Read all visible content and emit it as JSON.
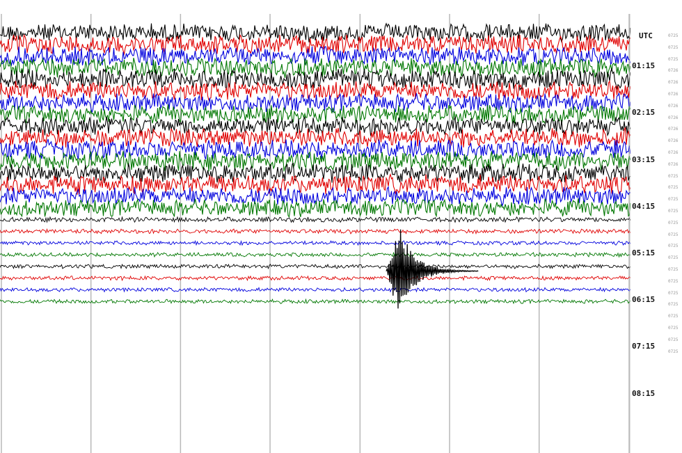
{
  "chart_data": {
    "type": "line",
    "title": "",
    "xlabel": "",
    "ylabel": "",
    "timezone_label": "UTC",
    "y_tick_labels": [
      "01:15",
      "02:15",
      "03:15",
      "04:15",
      "05:15",
      "06:15",
      "07:15",
      "08:15"
    ],
    "hour_tick_positions": [
      1,
      2,
      3,
      4,
      5,
      6,
      7,
      8
    ],
    "rows_per_hour": 4,
    "x_minutes_range": [
      0,
      15
    ],
    "x_gridline_minutes": [
      0,
      2.14,
      4.28,
      6.42,
      8.57,
      10.71,
      12.85,
      15
    ],
    "row_colors": [
      "#000000",
      "#e00000",
      "#0000dd",
      "#007700"
    ],
    "series": [
      {
        "row": 0,
        "hour": 0.25,
        "amplitude": 0.9
      },
      {
        "row": 1,
        "hour": 0.5,
        "amplitude": 0.95
      },
      {
        "row": 2,
        "hour": 0.75,
        "amplitude": 0.95
      },
      {
        "row": 3,
        "hour": 1.0,
        "amplitude": 0.95
      },
      {
        "row": 4,
        "hour": 1.25,
        "amplitude": 1.0
      },
      {
        "row": 5,
        "hour": 1.5,
        "amplitude": 0.95
      },
      {
        "row": 6,
        "hour": 1.75,
        "amplitude": 0.9
      },
      {
        "row": 7,
        "hour": 2.0,
        "amplitude": 0.9
      },
      {
        "row": 8,
        "hour": 2.25,
        "amplitude": 0.9
      },
      {
        "row": 9,
        "hour": 2.5,
        "amplitude": 0.95
      },
      {
        "row": 10,
        "hour": 2.75,
        "amplitude": 0.95
      },
      {
        "row": 11,
        "hour": 3.0,
        "amplitude": 0.95
      },
      {
        "row": 12,
        "hour": 3.25,
        "amplitude": 0.95
      },
      {
        "row": 13,
        "hour": 3.5,
        "amplitude": 0.95
      },
      {
        "row": 14,
        "hour": 3.75,
        "amplitude": 0.9
      },
      {
        "row": 15,
        "hour": 4.0,
        "amplitude": 0.85
      },
      {
        "row": 16,
        "hour": 4.25,
        "amplitude": 0.25
      },
      {
        "row": 17,
        "hour": 4.5,
        "amplitude": 0.22
      },
      {
        "row": 18,
        "hour": 4.75,
        "amplitude": 0.2
      },
      {
        "row": 19,
        "hour": 5.0,
        "amplitude": 0.2
      },
      {
        "row": 20,
        "hour": 5.25,
        "amplitude": 0.2
      },
      {
        "row": 21,
        "hour": 5.5,
        "amplitude": 0.2
      },
      {
        "row": 22,
        "hour": 5.75,
        "amplitude": 0.2
      },
      {
        "row": 23,
        "hour": 6.0,
        "amplitude": 0.2
      }
    ],
    "event": {
      "hour": 5.35,
      "minute_start": 9.2,
      "minute_peak": 9.5,
      "minute_end": 11.4,
      "peak_amplitude": 4.2
    }
  },
  "right_amplitude_labels": [
    "0725",
    "0725",
    "0725",
    "0726",
    "0726",
    "0726",
    "0726",
    "0726",
    "0726",
    "0726",
    "0726",
    "0726",
    "0725",
    "0725",
    "0725",
    "0725",
    "0725",
    "0725",
    "0725",
    "0725",
    "0725",
    "0725",
    "0725",
    "0725",
    "0725",
    "0725",
    "0725",
    "0725"
  ]
}
